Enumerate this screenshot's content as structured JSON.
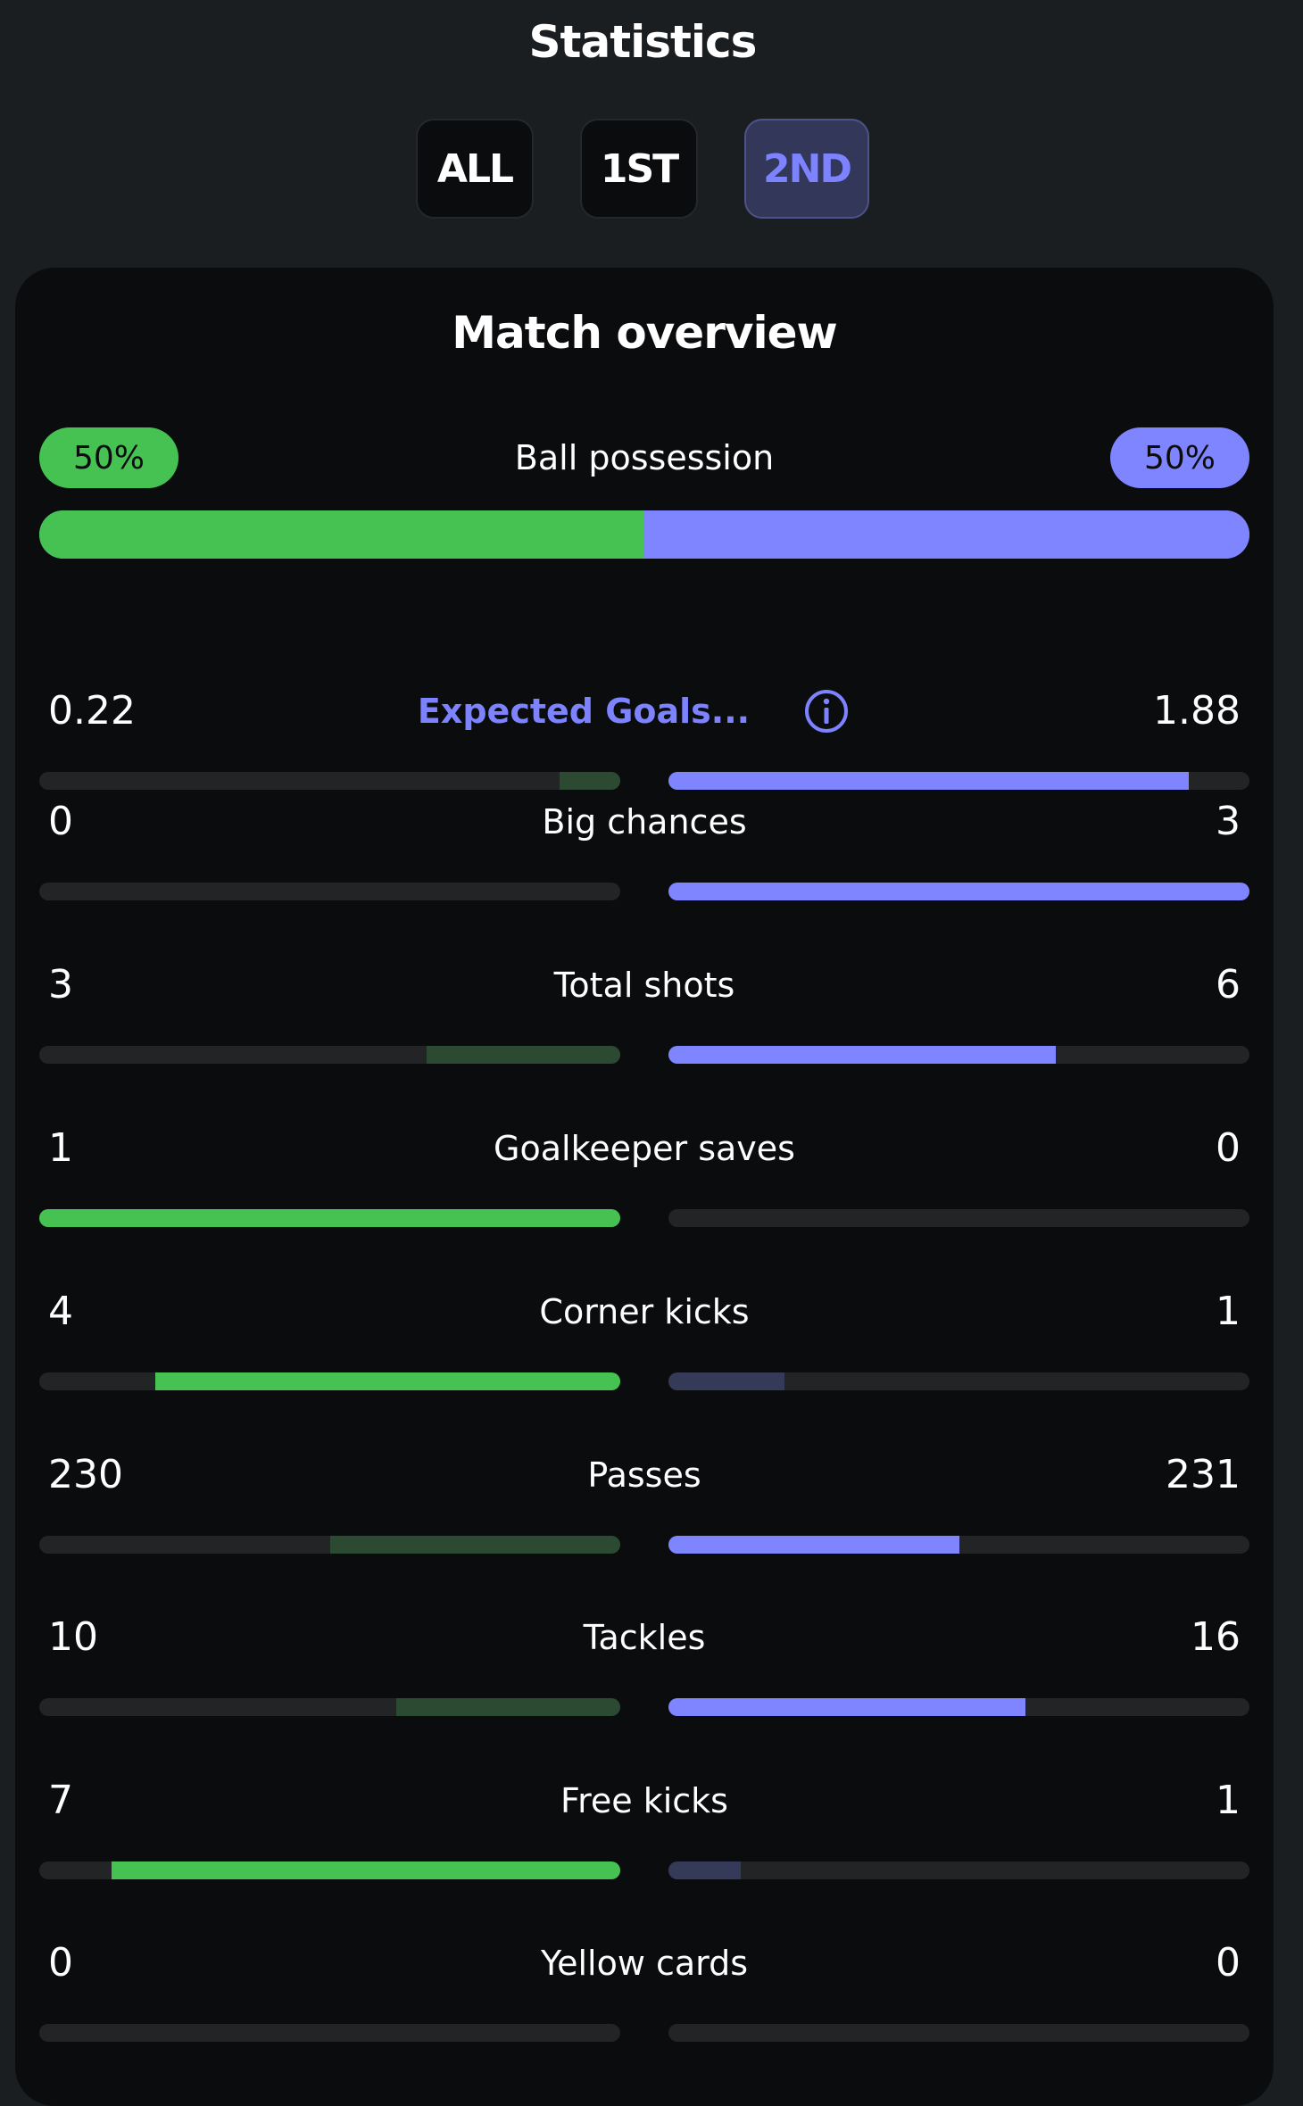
{
  "header": {
    "title": "Statistics"
  },
  "period_tabs": [
    {
      "label": "ALL",
      "active": false
    },
    {
      "label": "1ST",
      "active": false
    },
    {
      "label": "2ND",
      "active": true
    }
  ],
  "overview": {
    "title": "Match overview",
    "possession": {
      "label": "Ball possession",
      "home": "50%",
      "away": "50%",
      "home_fraction": 0.5,
      "away_fraction": 0.5
    },
    "stats": [
      {
        "label": "Expected Goals...",
        "home": "0.22",
        "away": "1.88",
        "home_fraction": 0.105,
        "away_fraction": 0.895,
        "has_info": true
      },
      {
        "label": "Big chances",
        "home": "0",
        "away": "3",
        "home_fraction": 0.0,
        "away_fraction": 1.0
      },
      {
        "label": "Total shots",
        "home": "3",
        "away": "6",
        "home_fraction": 0.333,
        "away_fraction": 0.667
      },
      {
        "label": "Goalkeeper saves",
        "home": "1",
        "away": "0",
        "home_fraction": 1.0,
        "away_fraction": 0.0
      },
      {
        "label": "Corner kicks",
        "home": "4",
        "away": "1",
        "home_fraction": 0.8,
        "away_fraction": 0.2
      },
      {
        "label": "Passes",
        "home": "230",
        "away": "231",
        "home_fraction": 0.5,
        "away_fraction": 0.5
      },
      {
        "label": "Tackles",
        "home": "10",
        "away": "16",
        "home_fraction": 0.385,
        "away_fraction": 0.615
      },
      {
        "label": "Free kicks",
        "home": "7",
        "away": "1",
        "home_fraction": 0.875,
        "away_fraction": 0.125
      },
      {
        "label": "Yellow cards",
        "home": "0",
        "away": "0",
        "home_fraction": 0.0,
        "away_fraction": 0.0
      }
    ]
  },
  "colors": {
    "home": "#46c252",
    "away": "#7f84ff",
    "home_muted": "#2c4a31",
    "away_muted": "#353a59",
    "track": "#222426",
    "card_bg": "#0b0c0e",
    "page_bg": "#1b1e21"
  },
  "icons": {
    "info": "info-circle-icon"
  }
}
